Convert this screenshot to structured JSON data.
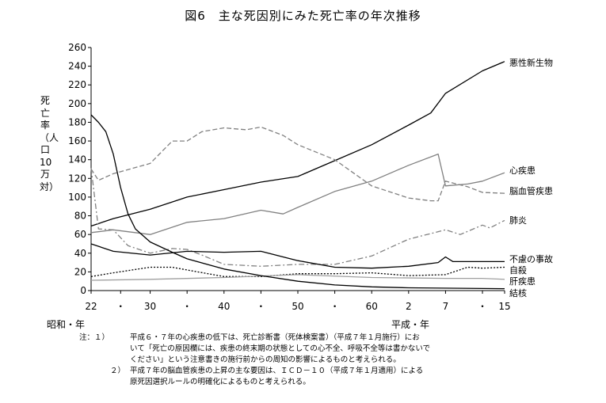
{
  "chart_data": {
    "type": "line",
    "title": "図6　主な死因別にみた死亡率の年次推移",
    "ylabel": "死亡率（人口10万対）",
    "ylim": [
      0,
      260
    ],
    "yticks": [
      0,
      20,
      40,
      60,
      80,
      100,
      120,
      140,
      160,
      180,
      200,
      220,
      240,
      260
    ],
    "xlim": [
      1947,
      2003
    ],
    "xticks": [
      {
        "year": 1947,
        "label": "22"
      },
      {
        "year": 1951,
        "label": "・"
      },
      {
        "year": 1955,
        "label": "30"
      },
      {
        "year": 1960,
        "label": "・"
      },
      {
        "year": 1965,
        "label": "40"
      },
      {
        "year": 1970,
        "label": "・"
      },
      {
        "year": 1975,
        "label": "50"
      },
      {
        "year": 1980,
        "label": "・"
      },
      {
        "year": 1985,
        "label": "60"
      },
      {
        "year": 1990,
        "label": "2"
      },
      {
        "year": 1995,
        "label": "7"
      },
      {
        "year": 2000,
        "label": "・"
      },
      {
        "year": 2003,
        "label": "15"
      }
    ],
    "era_labels": {
      "showa": "昭和・年",
      "heisei": "平成・年"
    },
    "grid": false,
    "legend": "direct labels at right end",
    "series": [
      {
        "name": "悪性新生物",
        "color": "#000000",
        "style": "solid",
        "points": [
          [
            1947,
            69
          ],
          [
            1950,
            77
          ],
          [
            1955,
            87
          ],
          [
            1960,
            100
          ],
          [
            1965,
            108
          ],
          [
            1970,
            116
          ],
          [
            1975,
            122
          ],
          [
            1980,
            139
          ],
          [
            1985,
            156
          ],
          [
            1990,
            177
          ],
          [
            1993,
            190
          ],
          [
            1995,
            211
          ],
          [
            2000,
            235
          ],
          [
            2003,
            245
          ]
        ]
      },
      {
        "name": "心疾患",
        "color": "#808080",
        "style": "solid",
        "points": [
          [
            1947,
            62
          ],
          [
            1950,
            65
          ],
          [
            1955,
            60
          ],
          [
            1960,
            73
          ],
          [
            1965,
            77
          ],
          [
            1970,
            86
          ],
          [
            1973,
            82
          ],
          [
            1975,
            89
          ],
          [
            1980,
            106
          ],
          [
            1985,
            117
          ],
          [
            1990,
            134
          ],
          [
            1994,
            146
          ],
          [
            1995,
            112
          ],
          [
            1998,
            114
          ],
          [
            2000,
            117
          ],
          [
            2003,
            126
          ]
        ]
      },
      {
        "name": "脳血管疾患",
        "color": "#808080",
        "style": "dash",
        "points": [
          [
            1947,
            130
          ],
          [
            1948,
            118
          ],
          [
            1950,
            125
          ],
          [
            1955,
            136
          ],
          [
            1958,
            160
          ],
          [
            1960,
            160
          ],
          [
            1962,
            170
          ],
          [
            1965,
            174
          ],
          [
            1968,
            172
          ],
          [
            1970,
            175
          ],
          [
            1973,
            166
          ],
          [
            1975,
            156
          ],
          [
            1980,
            140
          ],
          [
            1985,
            112
          ],
          [
            1990,
            99
          ],
          [
            1993,
            96
          ],
          [
            1994,
            96
          ],
          [
            1995,
            117
          ],
          [
            1998,
            111
          ],
          [
            2000,
            105
          ],
          [
            2003,
            104
          ]
        ]
      },
      {
        "name": "肺炎",
        "color": "#808080",
        "style": "dashdot",
        "points": [
          [
            1947,
            131
          ],
          [
            1948,
            66
          ],
          [
            1950,
            65
          ],
          [
            1952,
            48
          ],
          [
            1955,
            40
          ],
          [
            1958,
            45
          ],
          [
            1960,
            44
          ],
          [
            1962,
            38
          ],
          [
            1965,
            28
          ],
          [
            1970,
            26
          ],
          [
            1975,
            28
          ],
          [
            1980,
            28
          ],
          [
            1985,
            37
          ],
          [
            1990,
            55
          ],
          [
            1995,
            65
          ],
          [
            1997,
            60
          ],
          [
            2000,
            70
          ],
          [
            2001,
            67
          ],
          [
            2003,
            75
          ]
        ]
      },
      {
        "name": "不慮の事故",
        "color": "#000000",
        "style": "solid",
        "points": [
          [
            1947,
            50
          ],
          [
            1950,
            42
          ],
          [
            1955,
            38
          ],
          [
            1960,
            42
          ],
          [
            1965,
            41
          ],
          [
            1970,
            42
          ],
          [
            1975,
            32
          ],
          [
            1980,
            25
          ],
          [
            1985,
            24
          ],
          [
            1990,
            26
          ],
          [
            1994,
            30
          ],
          [
            1995,
            36
          ],
          [
            1996,
            31
          ],
          [
            2000,
            31
          ],
          [
            2003,
            31
          ]
        ]
      },
      {
        "name": "自殺",
        "color": "#000000",
        "style": "dot",
        "points": [
          [
            1947,
            15
          ],
          [
            1950,
            19
          ],
          [
            1955,
            25
          ],
          [
            1958,
            25
          ],
          [
            1960,
            22
          ],
          [
            1965,
            15
          ],
          [
            1970,
            15
          ],
          [
            1975,
            18
          ],
          [
            1980,
            18
          ],
          [
            1985,
            19
          ],
          [
            1990,
            16
          ],
          [
            1995,
            17
          ],
          [
            1998,
            25
          ],
          [
            2000,
            24
          ],
          [
            2003,
            25
          ]
        ]
      },
      {
        "name": "肝疾患",
        "color": "#a0a0a0",
        "style": "solid",
        "points": [
          [
            1947,
            11
          ],
          [
            1955,
            12
          ],
          [
            1965,
            14
          ],
          [
            1975,
            17
          ],
          [
            1985,
            14
          ],
          [
            1995,
            13
          ],
          [
            2000,
            13
          ],
          [
            2003,
            12
          ]
        ]
      },
      {
        "name": "結核",
        "color": "#000000",
        "style": "solid",
        "points": [
          [
            1947,
            188
          ],
          [
            1948,
            180
          ],
          [
            1949,
            170
          ],
          [
            1950,
            146
          ],
          [
            1951,
            110
          ],
          [
            1952,
            82
          ],
          [
            1953,
            66
          ],
          [
            1955,
            52
          ],
          [
            1958,
            41
          ],
          [
            1960,
            34
          ],
          [
            1965,
            23
          ],
          [
            1970,
            16
          ],
          [
            1975,
            10
          ],
          [
            1980,
            6
          ],
          [
            1985,
            4
          ],
          [
            1990,
            3
          ],
          [
            2003,
            2
          ]
        ]
      }
    ]
  },
  "notes": [
    {
      "mark": "注：１）",
      "text": "平成６・７年の心疾患の低下は、死亡診断書（死体検案書）（平成７年１月施行）にお"
    },
    {
      "mark": "",
      "text": "いて「死亡の原因欄には、疾患の終末期の状態としての心不全、呼吸不全等は書かないで"
    },
    {
      "mark": "",
      "text": "ください」という注意書きの施行前からの周知の影響によるものと考えられる。"
    },
    {
      "mark": "２）",
      "text": "平成７年の脳血管疾患の上昇の主な要因は、ＩＣＤ－１０（平成７年１月適用）による"
    },
    {
      "mark": "",
      "text": "原死因選択ルールの明確化によるものと考えられる。"
    }
  ]
}
